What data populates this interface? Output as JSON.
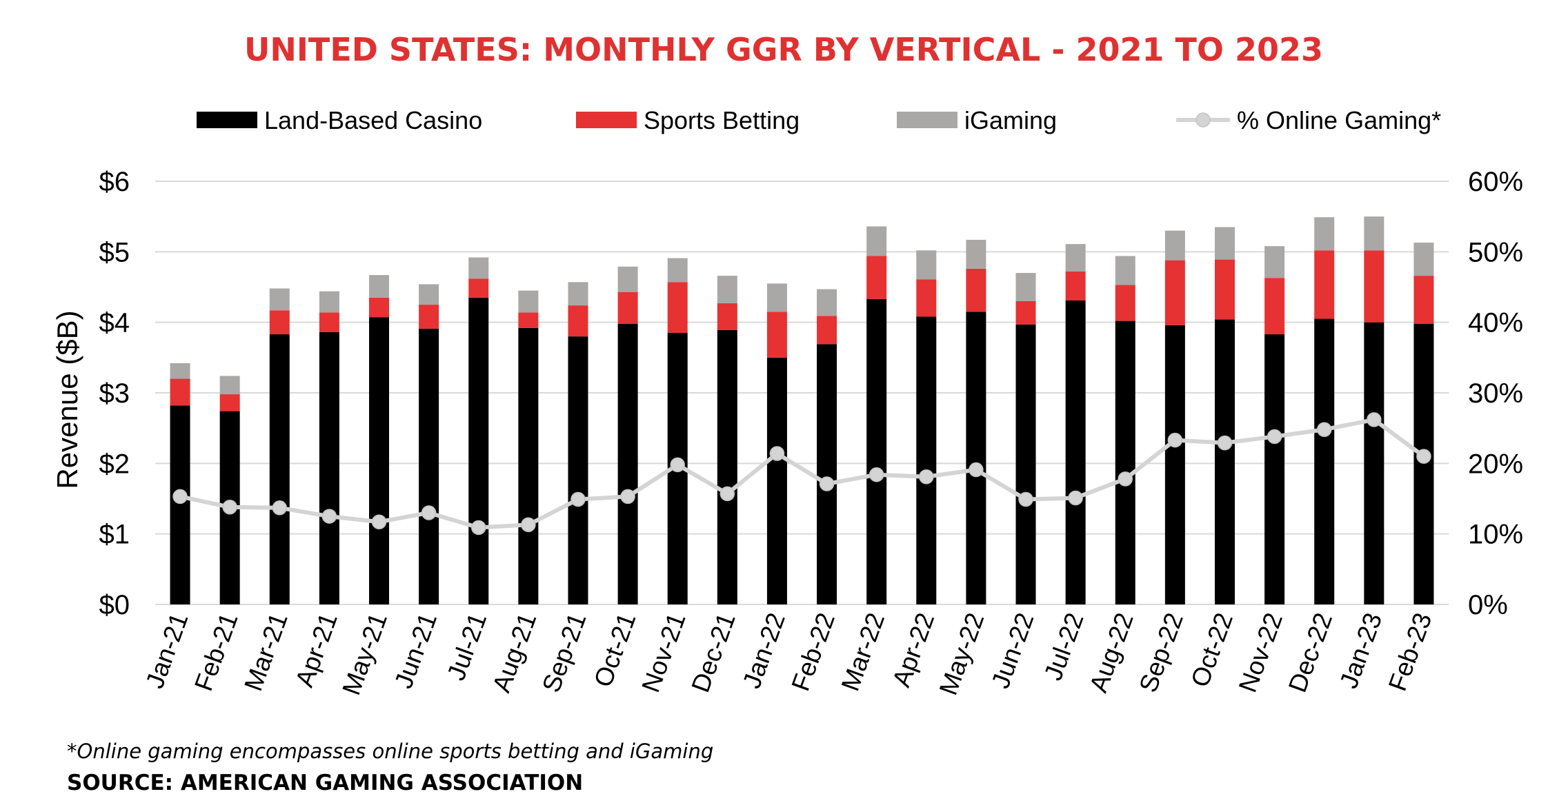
{
  "chart_data": {
    "type": "bar",
    "stacked": true,
    "title": "UNITED STATES: MONTHLY GGR BY VERTICAL - 2021 TO 2023",
    "ylabel": "Revenue ($B)",
    "xlabel": "",
    "ylim": [
      0,
      6
    ],
    "y2lim": [
      0,
      60
    ],
    "yticks": [
      "$0",
      "$1",
      "$2",
      "$3",
      "$4",
      "$5",
      "$6"
    ],
    "y2ticks": [
      "0%",
      "10%",
      "20%",
      "30%",
      "40%",
      "50%",
      "60%"
    ],
    "grid": true,
    "legend_position": "top",
    "categories": [
      "Jan-21",
      "Feb-21",
      "Mar-21",
      "Apr-21",
      "May-21",
      "Jun-21",
      "Jul-21",
      "Aug-21",
      "Sep-21",
      "Oct-21",
      "Nov-21",
      "Dec-21",
      "Jan-22",
      "Feb-22",
      "Mar-22",
      "Apr-22",
      "May-22",
      "Jun-22",
      "Jul-22",
      "Aug-22",
      "Sep-22",
      "Oct-22",
      "Nov-22",
      "Dec-22",
      "Jan-23",
      "Feb-23"
    ],
    "series": [
      {
        "name": "Land-Based Casino",
        "color": "#000000",
        "values": [
          2.82,
          2.74,
          3.83,
          3.86,
          4.07,
          3.91,
          4.35,
          3.92,
          3.8,
          3.98,
          3.85,
          3.89,
          3.5,
          3.69,
          4.33,
          4.08,
          4.15,
          3.97,
          4.31,
          4.02,
          3.96,
          4.04,
          3.83,
          4.05,
          4.0,
          3.98
        ]
      },
      {
        "name": "Sports Betting",
        "color": "#e63232",
        "values": [
          0.38,
          0.24,
          0.34,
          0.28,
          0.28,
          0.34,
          0.27,
          0.22,
          0.44,
          0.45,
          0.72,
          0.38,
          0.65,
          0.4,
          0.61,
          0.53,
          0.61,
          0.33,
          0.41,
          0.51,
          0.92,
          0.85,
          0.8,
          0.97,
          1.02,
          0.68
        ]
      },
      {
        "name": "iGaming",
        "color": "#aaa7a7",
        "values": [
          0.22,
          0.26,
          0.31,
          0.3,
          0.32,
          0.29,
          0.3,
          0.31,
          0.33,
          0.36,
          0.34,
          0.39,
          0.4,
          0.38,
          0.42,
          0.41,
          0.41,
          0.4,
          0.39,
          0.41,
          0.42,
          0.46,
          0.45,
          0.47,
          0.48,
          0.47
        ]
      },
      {
        "name": "% Online Gaming*",
        "color": "#d4d4d4",
        "axis": "right",
        "type": "line",
        "values": [
          15.3,
          13.8,
          13.7,
          12.5,
          11.7,
          13.0,
          10.9,
          11.3,
          14.9,
          15.3,
          19.8,
          15.7,
          21.4,
          17.1,
          18.4,
          18.1,
          19.1,
          14.9,
          15.1,
          17.8,
          23.3,
          22.9,
          23.8,
          24.8,
          26.2,
          21.0
        ]
      }
    ]
  },
  "footnote": "*Online gaming encompasses online sports betting and iGaming",
  "source": "SOURCE: AMERICAN GAMING ASSOCIATION"
}
